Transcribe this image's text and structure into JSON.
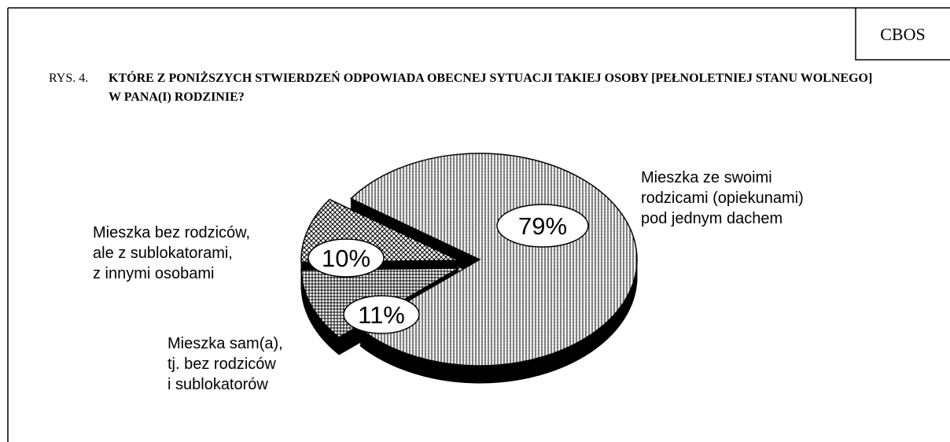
{
  "chart_data": {
    "type": "pie3d",
    "source": "CBOS",
    "figure_label": "RYS. 4.",
    "title": "KTÓRE Z PONIŻSZYCH STWIERDZEŃ ODPOWIADA OBECNEJ SYTUACJI TAKIEJ OSOBY [PEŁNOLETNIEJ STANU WOLNEGO] W PANA(I) RODZINIE?",
    "categories": [
      "Mieszka ze swoimi\nrodzicami (opiekunami)\npod jednym dachem",
      "Mieszka sam(a),\ntj. bez rodziców\ni sublokatorów",
      "Mieszka bez rodziców,\nale z sublokatorami,\nz innymi osobami"
    ],
    "values": [
      79,
      11,
      10
    ],
    "value_labels": [
      "79%",
      "11%",
      "10%"
    ]
  }
}
